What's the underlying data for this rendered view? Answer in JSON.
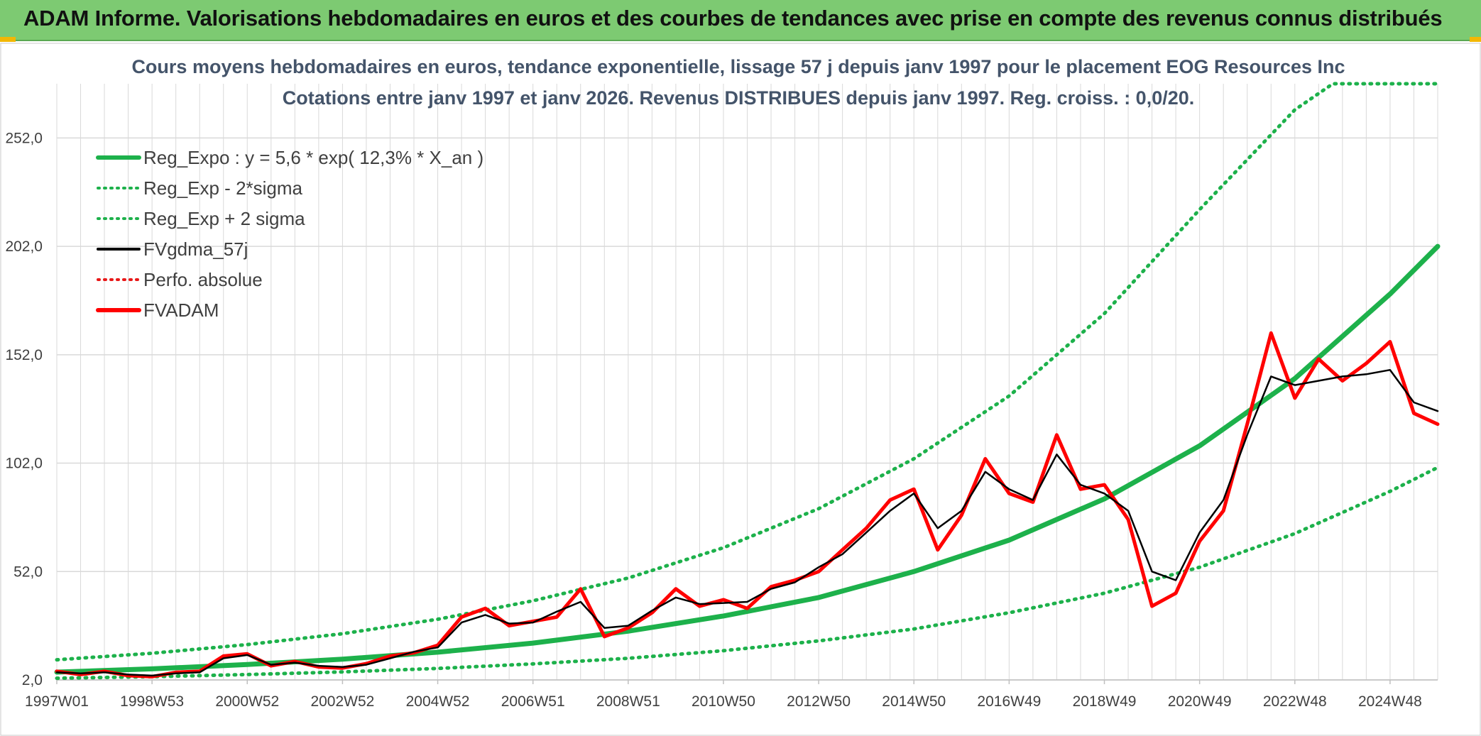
{
  "banner": {
    "title": "ADAM Informe. Valorisations hebdomadaires en euros et des courbes de tendances avec prise en compte des revenus connus distribués"
  },
  "chart_data": {
    "type": "line",
    "title_line1": "Cours moyens hebdomadaires en euros, tendance exponentielle, lissage 57 j depuis janv 1997 pour le placement EOG Resources Inc",
    "title_line2": "Cotations entre janv 1997 et janv 2026. Revenus DISTRIBUES depuis janv 1997. Reg. croiss. : 0,0/20.",
    "y_ticks": [
      "2,0",
      "52,0",
      "102,0",
      "152,0",
      "202,0",
      "252,0"
    ],
    "y_tick_values": [
      2,
      52,
      102,
      152,
      202,
      252
    ],
    "ylim": [
      2,
      277
    ],
    "xlim": [
      1997.0,
      2026.0
    ],
    "x_tick_labels": [
      "1997W01",
      "1998W53",
      "2000W52",
      "2002W52",
      "2004W52",
      "2006W51",
      "2008W51",
      "2010W50",
      "2012W50",
      "2014W50",
      "2016W49",
      "2018W49",
      "2020W49",
      "2022W48",
      "2024W48"
    ],
    "x_tick_values": [
      1997.0,
      1999.0,
      2001.0,
      2003.0,
      2005.0,
      2007.0,
      2009.0,
      2011.0,
      2013.0,
      2015.0,
      2017.0,
      2019.0,
      2021.0,
      2023.0,
      2025.0
    ],
    "colors": {
      "reg_expo": "#1db14b",
      "sigma": "#1db14b",
      "fvgdma": "#000000",
      "perfo": "#e81818",
      "fvadam": "#ff0000",
      "grid": "#d9d9d9",
      "title": "#44546a"
    },
    "legend": [
      {
        "label": "Reg_Expo : y = 5,6 * exp( 12,3% *  X_an )",
        "style": "solid-thick",
        "color": "#1db14b"
      },
      {
        "label": "Reg_Exp - 2*sigma",
        "style": "dotted",
        "color": "#1db14b"
      },
      {
        "label": "Reg_Exp + 2 sigma",
        "style": "dotted",
        "color": "#1db14b"
      },
      {
        "label": "FVgdma_57j",
        "style": "solid",
        "color": "#000000"
      },
      {
        "label": "Perfo. absolue",
        "style": "dotted",
        "color": "#e81818"
      },
      {
        "label": "FVADAM",
        "style": "solid-thick",
        "color": "#ff0000"
      }
    ],
    "series": [
      {
        "name": "Reg_Expo",
        "x": [
          1997.0,
          1999.0,
          2001.0,
          2003.0,
          2005.0,
          2007.0,
          2009.0,
          2011.0,
          2013.0,
          2015.0,
          2017.0,
          2019.0,
          2021.0,
          2023.0,
          2025.0,
          2026.0
        ],
        "y": [
          5.6,
          7.1,
          9.1,
          11.6,
          14.8,
          19.0,
          24.5,
          31.5,
          40.0,
          52.0,
          66.5,
          85.5,
          110.0,
          141.0,
          180.0,
          202.0
        ]
      },
      {
        "name": "Reg_Exp - 2*sigma",
        "x": [
          1997.0,
          1999.0,
          2001.0,
          2003.0,
          2005.0,
          2007.0,
          2009.0,
          2011.0,
          2013.0,
          2015.0,
          2017.0,
          2019.0,
          2021.0,
          2023.0,
          2025.0,
          2026.0
        ],
        "y": [
          2.8,
          3.5,
          4.5,
          5.7,
          7.3,
          9.4,
          12.0,
          15.5,
          20.0,
          25.5,
          33.0,
          42.0,
          54.0,
          69.5,
          89.0,
          100.0
        ]
      },
      {
        "name": "Reg_Exp + 2 sigma",
        "x": [
          1997.0,
          1999.0,
          2001.0,
          2003.0,
          2005.0,
          2007.0,
          2009.0,
          2011.0,
          2013.0,
          2015.0,
          2017.0,
          2019.0,
          2021.0,
          2023.0,
          2023.8,
          2026.0
        ],
        "y": [
          11.3,
          14.3,
          18.3,
          23.3,
          30.0,
          38.5,
          49.0,
          63.0,
          81.0,
          104.0,
          133.0,
          171.0,
          219.0,
          265.0,
          277.0,
          277.0
        ]
      },
      {
        "name": "FVgdma_57j",
        "x": [
          1997.0,
          1997.5,
          1998.0,
          1998.5,
          1999.0,
          1999.5,
          2000.0,
          2000.5,
          2001.0,
          2001.5,
          2002.0,
          2002.5,
          2003.0,
          2003.5,
          2004.0,
          2004.5,
          2005.0,
          2005.5,
          2006.0,
          2006.5,
          2007.0,
          2007.5,
          2008.0,
          2008.5,
          2009.0,
          2009.5,
          2010.0,
          2010.5,
          2011.0,
          2011.5,
          2012.0,
          2012.5,
          2013.0,
          2013.5,
          2014.0,
          2014.5,
          2015.0,
          2015.5,
          2016.0,
          2016.5,
          2017.0,
          2017.5,
          2018.0,
          2018.5,
          2019.0,
          2019.5,
          2020.0,
          2020.5,
          2021.0,
          2021.5,
          2022.0,
          2022.5,
          2023.0,
          2023.5,
          2024.0,
          2024.5,
          2025.0,
          2025.5,
          2026.0
        ],
        "y": [
          5.5,
          5.0,
          5.5,
          4.5,
          4.0,
          5.0,
          5.5,
          12.0,
          13.5,
          9.0,
          10.0,
          8.5,
          8.0,
          9.0,
          12.0,
          15.0,
          17.0,
          28.5,
          32.0,
          28.0,
          28.5,
          33.5,
          38.0,
          26.0,
          27.0,
          34.0,
          40.0,
          37.0,
          37.5,
          38.0,
          44.0,
          47.0,
          54.0,
          60.0,
          70.0,
          80.0,
          88.0,
          72.0,
          80.0,
          98.0,
          90.0,
          85.0,
          106.0,
          92.0,
          88.0,
          80.0,
          52.0,
          48.0,
          70.0,
          85.0,
          115.0,
          142.0,
          138.0,
          140.0,
          142.0,
          143.0,
          145.0,
          130.0,
          126.0
        ]
      },
      {
        "name": "FVADAM",
        "x": [
          1997.0,
          1997.5,
          1998.0,
          1998.5,
          1999.0,
          1999.5,
          2000.0,
          2000.5,
          2001.0,
          2001.5,
          2002.0,
          2002.5,
          2003.0,
          2003.5,
          2004.0,
          2004.5,
          2005.0,
          2005.5,
          2006.0,
          2006.5,
          2007.0,
          2007.5,
          2008.0,
          2008.5,
          2009.0,
          2009.5,
          2010.0,
          2010.5,
          2011.0,
          2011.5,
          2012.0,
          2012.5,
          2013.0,
          2013.5,
          2014.0,
          2014.5,
          2015.0,
          2015.5,
          2016.0,
          2016.5,
          2017.0,
          2017.5,
          2018.0,
          2018.5,
          2019.0,
          2019.5,
          2020.0,
          2020.5,
          2021.0,
          2021.5,
          2022.0,
          2022.5,
          2023.0,
          2023.5,
          2024.0,
          2024.5,
          2025.0,
          2025.5,
          2026.0
        ],
        "y": [
          6.0,
          4.5,
          6.0,
          4.0,
          3.5,
          5.5,
          6.0,
          13.0,
          14.0,
          8.5,
          10.5,
          8.0,
          7.5,
          9.5,
          13.0,
          14.5,
          18.0,
          31.0,
          35.0,
          27.0,
          29.0,
          31.0,
          44.0,
          22.0,
          26.0,
          33.0,
          44.0,
          36.0,
          39.0,
          35.0,
          45.0,
          48.0,
          52.0,
          62.0,
          72.0,
          85.0,
          90.0,
          62.0,
          78.0,
          104.0,
          88.0,
          84.0,
          115.0,
          90.0,
          92.0,
          76.0,
          36.0,
          42.0,
          66.0,
          80.0,
          120.0,
          162.0,
          132.0,
          150.0,
          140.0,
          148.0,
          158.0,
          125.0,
          120.0
        ]
      }
    ]
  }
}
